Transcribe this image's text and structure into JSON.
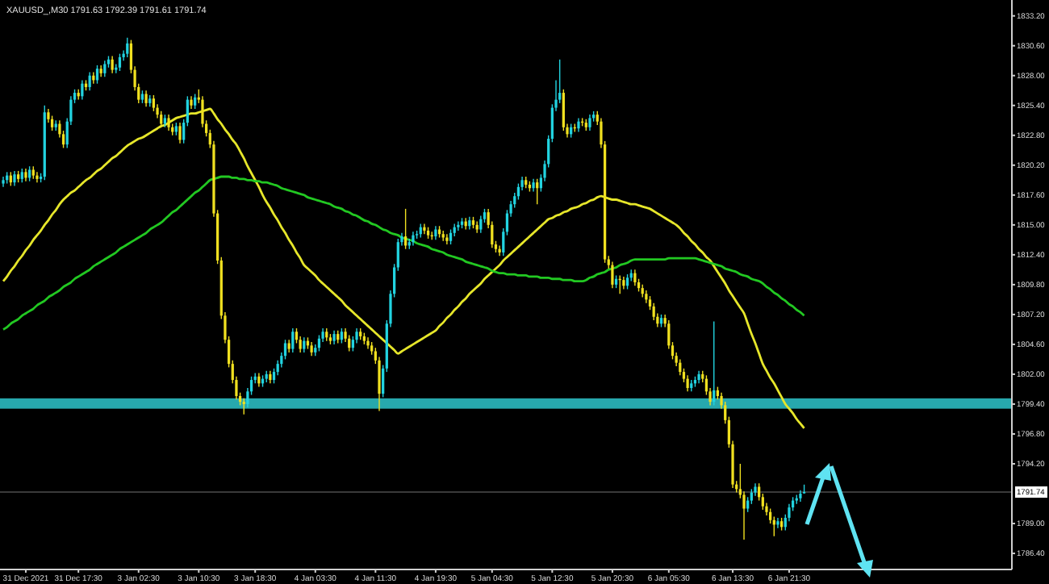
{
  "chart_data": {
    "type": "candlestick",
    "title": "XAUUSD_,M30  1791.63 1792.39 1791.61 1791.74",
    "colors": [
      "#22d3e0",
      "#22d3e0",
      "#f0e020",
      "#22d3e0",
      "#f0e020",
      "#22d3e0",
      "#f0e020",
      "#22d3e0",
      "#f0e020",
      "#f0e020",
      "#22d3e0",
      "#22d3e0",
      "#f0e020",
      "#f0e020",
      "#22d3e0",
      "#f0e020",
      "#f0e020",
      "#22d3e0",
      "#22d3e0",
      "#22d3e0",
      "#f0e020",
      "#22d3e0",
      "#f0e020",
      "#22d3e0",
      "#f0e020",
      "#22d3e0",
      "#f0e020",
      "#22d3e0",
      "#22d3e0",
      "#f0e020",
      "#22d3e0",
      "#22d3e0",
      "#22d3e0",
      "#22d3e0",
      "#f0e020",
      "#f0e020",
      "#f0e020",
      "#22d3e0",
      "#f0e020",
      "#22d3e0",
      "#f0e020",
      "#f0e020",
      "#f0e020",
      "#22d3e0",
      "#f0e020",
      "#f0e020",
      "#22d3e0",
      "#f0e020",
      "#22d3e0",
      "#22d3e0",
      "#f0e020",
      "#22d3e0",
      "#f0e020",
      "#f0e020",
      "#f0e020",
      "#f0e020",
      "#f0e020",
      "#f0e020",
      "#f0e020",
      "#f0e020",
      "#f0e020",
      "#f0e020",
      "#f0e020",
      "#f0e020",
      "#f0e020",
      "#22d3e0",
      "#22d3e0",
      "#22d3e0",
      "#f0e020",
      "#22d3e0",
      "#22d3e0",
      "#f0e020",
      "#22d3e0",
      "#22d3e0",
      "#22d3e0",
      "#22d3e0",
      "#f0e020",
      "#22d3e0",
      "#f0e020",
      "#f0e020",
      "#22d3e0",
      "#f0e020",
      "#f0e020",
      "#22d3e0",
      "#22d3e0",
      "#22d3e0",
      "#f0e020",
      "#f0e020",
      "#22d3e0",
      "#f0e020",
      "#22d3e0",
      "#f0e020",
      "#f0e020",
      "#22d3e0",
      "#22d3e0",
      "#f0e020",
      "#f0e020",
      "#f0e020",
      "#f0e020",
      "#f0e020",
      "#f0e020",
      "#22d3e0",
      "#22d3e0",
      "#22d3e0",
      "#22d3e0",
      "#22d3e0",
      "#22d3e0",
      "#f0e020",
      "#22d3e0",
      "#22d3e0",
      "#22d3e0",
      "#22d3e0",
      "#f0e020",
      "#f0e020",
      "#f0e020",
      "#22d3e0",
      "#f0e020",
      "#f0e020",
      "#f0e020",
      "#22d3e0",
      "#22d3e0",
      "#22d3e0",
      "#22d3e0",
      "#f0e020",
      "#22d3e0",
      "#f0e020",
      "#f0e020",
      "#22d3e0",
      "#22d3e0",
      "#f0e020",
      "#f0e020",
      "#f0e020",
      "#f0e020",
      "#22d3e0",
      "#22d3e0",
      "#22d3e0",
      "#22d3e0",
      "#22d3e0",
      "#22d3e0",
      "#f0e020",
      "#f0e020",
      "#22d3e0",
      "#f0e020",
      "#22d3e0",
      "#22d3e0",
      "#22d3e0",
      "#22d3e0",
      "#22d3e0",
      "#22d3e0",
      "#f0e020",
      "#f0e020",
      "#22d3e0",
      "#f0e020",
      "#22d3e0",
      "#f0e020",
      "#f0e020",
      "#22d3e0",
      "#22d3e0",
      "#f0e020",
      "#f0e020",
      "#f0e020",
      "#f0e020",
      "#f0e020",
      "#22d3e0",
      "#f0e020",
      "#f0e020",
      "#22d3e0",
      "#22d3e0",
      "#f0e020",
      "#f0e020",
      "#f0e020",
      "#f0e020",
      "#f0e020",
      "#f0e020",
      "#f0e020",
      "#22d3e0",
      "#f0e020",
      "#f0e020",
      "#f0e020",
      "#f0e020",
      "#f0e020",
      "#f0e020",
      "#f0e020",
      "#22d3e0",
      "#22d3e0",
      "#22d3e0",
      "#f0e020",
      "#f0e020",
      "#f0e020",
      "#22d3e0",
      "#f0e020",
      "#f0e020",
      "#f0e020",
      "#f0e020",
      "#f0e020",
      "#f0e020",
      "#f0e020",
      "#f0e020",
      "#22d3e0",
      "#22d3e0",
      "#22d3e0",
      "#f0e020",
      "#f0e020",
      "#f0e020",
      "#f0e020",
      "#f0e020",
      "#22d3e0",
      "#f0e020",
      "#22d3e0",
      "#22d3e0",
      "#22d3e0",
      "#22d3e0",
      "#22d3e0",
      "#22d3e0"
    ],
    "categories": [
      null,
      null,
      null,
      null,
      null,
      null,
      "31 Dec 2021",
      null,
      null,
      null,
      null,
      null,
      null,
      null,
      null,
      null,
      null,
      null,
      null,
      null,
      "31 Dec 17:30",
      null,
      null,
      null,
      null,
      null,
      null,
      null,
      null,
      null,
      null,
      null,
      null,
      null,
      null,
      null,
      "3 Jan 02:30",
      null,
      null,
      null,
      null,
      null,
      null,
      null,
      null,
      null,
      null,
      null,
      null,
      null,
      null,
      null,
      "3 Jan 10:30",
      null,
      null,
      null,
      null,
      null,
      null,
      null,
      null,
      null,
      null,
      null,
      null,
      null,
      null,
      "3 Jan 18:30",
      null,
      null,
      null,
      null,
      null,
      null,
      null,
      null,
      null,
      null,
      null,
      null,
      null,
      null,
      null,
      "4 Jan 03:30",
      null,
      null,
      null,
      null,
      null,
      null,
      null,
      null,
      null,
      null,
      null,
      null,
      null,
      null,
      null,
      "4 Jan 11:30",
      null,
      null,
      null,
      null,
      null,
      null,
      null,
      null,
      null,
      null,
      null,
      null,
      null,
      null,
      null,
      "4 Jan 19:30",
      null,
      null,
      null,
      null,
      null,
      null,
      null,
      null,
      null,
      null,
      null,
      null,
      null,
      null,
      "5 Jan 04:30",
      null,
      null,
      null,
      null,
      null,
      null,
      null,
      null,
      null,
      null,
      null,
      null,
      null,
      null,
      null,
      "5 Jan 12:30",
      null,
      null,
      null,
      null,
      null,
      null,
      null,
      null,
      null,
      null,
      null,
      null,
      null,
      null,
      null,
      "5 Jan 20:30",
      null,
      null,
      null,
      null,
      null,
      null,
      null,
      null,
      null,
      null,
      null,
      null,
      null,
      null,
      "6 Jan 05:30",
      null,
      null,
      null,
      null,
      null,
      null,
      null,
      null,
      null,
      null,
      null,
      null,
      null,
      null,
      null,
      null,
      "6 Jan 13:30",
      null,
      null,
      null,
      null,
      null,
      null,
      null,
      null,
      null,
      null,
      null,
      null,
      null,
      null,
      "6 Jan 21:30",
      null,
      null,
      null,
      null
    ],
    "ohlc": [
      [
        1818.6,
        1819.2,
        1818.3,
        1818.9
      ],
      [
        1818.9,
        1819.6,
        1818.6,
        1819.3
      ],
      [
        1819.3,
        1819.6,
        1818.4,
        1818.7
      ],
      [
        1818.7,
        1819.7,
        1818.4,
        1819.4
      ],
      [
        1819.4,
        1819.7,
        1818.7,
        1819.0
      ],
      [
        1819.0,
        1819.9,
        1818.7,
        1819.6
      ],
      [
        1819.6,
        1819.9,
        1818.8,
        1819.1
      ],
      [
        1819.1,
        1820.1,
        1818.8,
        1819.8
      ],
      [
        1819.8,
        1820.1,
        1819.0,
        1819.3
      ],
      [
        1819.3,
        1819.6,
        1818.7,
        1819.0
      ],
      [
        1819.0,
        1819.5,
        1818.7,
        1819.2
      ],
      [
        1819.2,
        1825.4,
        1818.9,
        1824.8
      ],
      [
        1824.8,
        1825.1,
        1823.9,
        1824.2
      ],
      [
        1824.2,
        1824.5,
        1823.2,
        1823.5
      ],
      [
        1823.5,
        1824.1,
        1823.2,
        1823.8
      ],
      [
        1823.8,
        1824.1,
        1822.6,
        1822.9
      ],
      [
        1822.9,
        1823.2,
        1821.7,
        1822.0
      ],
      [
        1822.0,
        1824.3,
        1821.7,
        1824.0
      ],
      [
        1824.0,
        1826.2,
        1823.7,
        1825.9
      ],
      [
        1825.9,
        1826.8,
        1825.6,
        1826.5
      ],
      [
        1826.5,
        1826.8,
        1825.9,
        1826.2
      ],
      [
        1826.2,
        1827.6,
        1825.9,
        1827.3
      ],
      [
        1827.3,
        1827.6,
        1826.7,
        1827.0
      ],
      [
        1827.0,
        1828.3,
        1826.7,
        1828.0
      ],
      [
        1828.0,
        1828.3,
        1827.3,
        1827.6
      ],
      [
        1827.6,
        1828.9,
        1827.3,
        1828.6
      ],
      [
        1828.6,
        1828.9,
        1827.9,
        1828.2
      ],
      [
        1828.2,
        1829.3,
        1827.9,
        1829.0
      ],
      [
        1829.0,
        1829.7,
        1828.7,
        1829.4
      ],
      [
        1829.4,
        1829.7,
        1828.2,
        1828.5
      ],
      [
        1828.5,
        1829.0,
        1828.2,
        1828.7
      ],
      [
        1828.7,
        1829.9,
        1828.4,
        1829.6
      ],
      [
        1829.6,
        1830.2,
        1829.3,
        1829.9
      ],
      [
        1829.9,
        1831.3,
        1829.6,
        1830.8
      ],
      [
        1830.8,
        1831.1,
        1828.2,
        1828.5
      ],
      [
        1828.5,
        1828.8,
        1826.7,
        1827.0
      ],
      [
        1827.0,
        1827.3,
        1825.6,
        1825.9
      ],
      [
        1825.9,
        1826.7,
        1825.6,
        1826.4
      ],
      [
        1826.4,
        1826.7,
        1825.3,
        1825.6
      ],
      [
        1825.6,
        1826.3,
        1825.3,
        1826.0
      ],
      [
        1826.0,
        1826.3,
        1824.9,
        1825.2
      ],
      [
        1825.2,
        1825.5,
        1824.3,
        1824.6
      ],
      [
        1824.6,
        1824.9,
        1823.5,
        1823.8
      ],
      [
        1823.8,
        1824.6,
        1823.5,
        1824.3
      ],
      [
        1824.3,
        1824.6,
        1823.2,
        1823.5
      ],
      [
        1823.5,
        1823.8,
        1822.8,
        1823.1
      ],
      [
        1823.1,
        1823.9,
        1822.8,
        1823.6
      ],
      [
        1823.6,
        1823.9,
        1822.1,
        1822.4
      ],
      [
        1822.4,
        1824.2,
        1822.1,
        1823.9
      ],
      [
        1823.9,
        1826.2,
        1823.6,
        1825.9
      ],
      [
        1825.9,
        1826.2,
        1825.1,
        1825.4
      ],
      [
        1825.4,
        1826.4,
        1825.1,
        1826.1
      ],
      [
        1826.1,
        1826.8,
        1825.6,
        1825.9
      ],
      [
        1825.9,
        1826.2,
        1823.5,
        1823.8
      ],
      [
        1823.8,
        1824.1,
        1822.7,
        1823.0
      ],
      [
        1823.0,
        1823.3,
        1821.7,
        1822.0
      ],
      [
        1822.0,
        1822.3,
        1815.7,
        1816.0
      ],
      [
        1816.0,
        1816.3,
        1811.6,
        1811.9
      ],
      [
        1811.9,
        1812.2,
        1806.8,
        1807.1
      ],
      [
        1807.1,
        1807.4,
        1804.7,
        1805.0
      ],
      [
        1805.0,
        1805.3,
        1802.6,
        1802.9
      ],
      [
        1802.9,
        1803.2,
        1801.2,
        1801.5
      ],
      [
        1801.5,
        1801.8,
        1799.8,
        1800.1
      ],
      [
        1800.1,
        1800.4,
        1799.3,
        1799.6
      ],
      [
        1799.6,
        1799.9,
        1798.5,
        1799.4
      ],
      [
        1799.4,
        1800.8,
        1799.1,
        1800.5
      ],
      [
        1800.5,
        1801.8,
        1800.2,
        1801.5
      ],
      [
        1801.5,
        1802.1,
        1801.2,
        1801.8
      ],
      [
        1801.8,
        1802.1,
        1800.9,
        1801.2
      ],
      [
        1801.2,
        1801.9,
        1800.9,
        1801.6
      ],
      [
        1801.6,
        1802.3,
        1801.3,
        1802.0
      ],
      [
        1802.0,
        1802.3,
        1801.2,
        1801.5
      ],
      [
        1801.5,
        1802.5,
        1801.2,
        1802.2
      ],
      [
        1802.2,
        1803.2,
        1801.9,
        1802.9
      ],
      [
        1802.9,
        1803.9,
        1802.6,
        1803.6
      ],
      [
        1803.6,
        1805.0,
        1803.3,
        1804.7
      ],
      [
        1804.7,
        1805.0,
        1803.9,
        1804.2
      ],
      [
        1804.2,
        1806.0,
        1803.9,
        1805.7
      ],
      [
        1805.7,
        1806.0,
        1804.7,
        1805.0
      ],
      [
        1805.0,
        1805.3,
        1803.9,
        1804.2
      ],
      [
        1804.2,
        1805.2,
        1803.9,
        1804.9
      ],
      [
        1804.9,
        1805.2,
        1804.2,
        1804.5
      ],
      [
        1804.5,
        1804.8,
        1803.6,
        1803.9
      ],
      [
        1803.9,
        1804.6,
        1803.6,
        1804.3
      ],
      [
        1804.3,
        1805.4,
        1804.0,
        1805.1
      ],
      [
        1805.1,
        1806.0,
        1804.8,
        1805.7
      ],
      [
        1805.7,
        1806.0,
        1804.9,
        1805.2
      ],
      [
        1805.2,
        1805.5,
        1804.6,
        1804.9
      ],
      [
        1804.9,
        1805.8,
        1804.6,
        1805.5
      ],
      [
        1805.5,
        1805.8,
        1804.7,
        1805.0
      ],
      [
        1805.0,
        1806.0,
        1804.7,
        1805.7
      ],
      [
        1805.7,
        1806.0,
        1804.8,
        1805.1
      ],
      [
        1805.1,
        1805.4,
        1804.0,
        1804.3
      ],
      [
        1804.3,
        1805.3,
        1804.0,
        1805.0
      ],
      [
        1805.0,
        1806.0,
        1804.7,
        1805.7
      ],
      [
        1805.7,
        1806.0,
        1805.0,
        1805.3
      ],
      [
        1805.3,
        1805.6,
        1804.6,
        1804.9
      ],
      [
        1804.9,
        1805.2,
        1804.2,
        1804.5
      ],
      [
        1804.5,
        1804.8,
        1803.7,
        1804.0
      ],
      [
        1804.0,
        1804.3,
        1802.9,
        1803.2
      ],
      [
        1803.2,
        1803.5,
        1798.8,
        1800.3
      ],
      [
        1800.3,
        1802.8,
        1800.0,
        1802.5
      ],
      [
        1802.5,
        1806.7,
        1802.2,
        1806.4
      ],
      [
        1806.4,
        1809.3,
        1806.1,
        1809.0
      ],
      [
        1809.0,
        1811.6,
        1808.7,
        1811.3
      ],
      [
        1811.3,
        1813.8,
        1811.0,
        1813.5
      ],
      [
        1813.5,
        1814.3,
        1813.2,
        1814.0
      ],
      [
        1814.0,
        1816.4,
        1812.9,
        1813.2
      ],
      [
        1813.2,
        1813.8,
        1812.9,
        1813.5
      ],
      [
        1813.5,
        1814.4,
        1813.2,
        1814.1
      ],
      [
        1814.1,
        1814.5,
        1813.8,
        1814.2
      ],
      [
        1814.2,
        1815.1,
        1813.9,
        1814.8
      ],
      [
        1814.8,
        1815.1,
        1814.2,
        1814.5
      ],
      [
        1814.5,
        1814.8,
        1813.8,
        1814.1
      ],
      [
        1814.1,
        1814.4,
        1813.7,
        1814.0
      ],
      [
        1814.0,
        1814.9,
        1813.7,
        1814.6
      ],
      [
        1814.6,
        1814.9,
        1813.9,
        1814.2
      ],
      [
        1814.2,
        1814.5,
        1813.6,
        1813.9
      ],
      [
        1813.9,
        1814.2,
        1813.3,
        1813.6
      ],
      [
        1813.6,
        1814.6,
        1813.3,
        1814.3
      ],
      [
        1814.3,
        1815.1,
        1814.0,
        1814.8
      ],
      [
        1814.8,
        1815.3,
        1814.5,
        1815.0
      ],
      [
        1815.0,
        1815.6,
        1814.7,
        1815.3
      ],
      [
        1815.3,
        1815.6,
        1814.6,
        1814.9
      ],
      [
        1814.9,
        1815.7,
        1814.6,
        1815.4
      ],
      [
        1815.4,
        1815.7,
        1814.7,
        1815.0
      ],
      [
        1815.0,
        1815.3,
        1814.3,
        1814.6
      ],
      [
        1814.6,
        1815.8,
        1814.3,
        1815.5
      ],
      [
        1815.5,
        1816.4,
        1815.2,
        1816.1
      ],
      [
        1816.1,
        1816.4,
        1814.7,
        1815.0
      ],
      [
        1815.0,
        1815.3,
        1813.0,
        1813.3
      ],
      [
        1813.3,
        1813.6,
        1812.6,
        1812.9
      ],
      [
        1812.9,
        1813.2,
        1812.3,
        1812.6
      ],
      [
        1812.6,
        1814.7,
        1812.3,
        1814.4
      ],
      [
        1814.4,
        1816.3,
        1814.1,
        1816.0
      ],
      [
        1816.0,
        1817.1,
        1815.7,
        1816.8
      ],
      [
        1816.8,
        1817.8,
        1816.5,
        1817.5
      ],
      [
        1817.5,
        1818.6,
        1817.2,
        1818.3
      ],
      [
        1818.3,
        1819.2,
        1818.0,
        1818.9
      ],
      [
        1818.9,
        1819.2,
        1818.2,
        1818.5
      ],
      [
        1818.5,
        1818.8,
        1817.9,
        1818.2
      ],
      [
        1818.2,
        1819.0,
        1817.9,
        1818.7
      ],
      [
        1818.7,
        1819.0,
        1816.8,
        1818.2
      ],
      [
        1818.2,
        1819.4,
        1817.9,
        1819.1
      ],
      [
        1819.1,
        1820.6,
        1818.8,
        1820.3
      ],
      [
        1820.3,
        1822.8,
        1820.0,
        1822.5
      ],
      [
        1822.5,
        1825.5,
        1822.2,
        1825.2
      ],
      [
        1825.2,
        1827.6,
        1824.9,
        1825.9
      ],
      [
        1825.9,
        1829.4,
        1825.6,
        1826.5
      ],
      [
        1826.5,
        1826.8,
        1823.2,
        1823.5
      ],
      [
        1823.5,
        1823.8,
        1822.6,
        1822.9
      ],
      [
        1822.9,
        1823.8,
        1822.6,
        1823.5
      ],
      [
        1823.5,
        1823.8,
        1823.1,
        1823.4
      ],
      [
        1823.4,
        1824.3,
        1823.1,
        1824.0
      ],
      [
        1824.0,
        1824.3,
        1823.6,
        1823.9
      ],
      [
        1823.9,
        1824.2,
        1823.2,
        1823.5
      ],
      [
        1823.5,
        1824.6,
        1823.2,
        1824.3
      ],
      [
        1824.3,
        1824.9,
        1824.0,
        1824.6
      ],
      [
        1824.6,
        1824.9,
        1823.7,
        1824.0
      ],
      [
        1824.0,
        1824.3,
        1821.7,
        1822.0
      ],
      [
        1822.0,
        1822.3,
        1811.7,
        1812.0
      ],
      [
        1812.0,
        1812.3,
        1811.2,
        1811.5
      ],
      [
        1811.5,
        1811.8,
        1809.5,
        1809.8
      ],
      [
        1809.8,
        1810.6,
        1809.5,
        1810.3
      ],
      [
        1810.3,
        1810.6,
        1809.0,
        1810.2
      ],
      [
        1810.2,
        1810.5,
        1809.4,
        1809.7
      ],
      [
        1809.7,
        1810.7,
        1809.4,
        1810.4
      ],
      [
        1810.4,
        1811.1,
        1810.1,
        1810.8
      ],
      [
        1810.8,
        1811.1,
        1809.7,
        1810.0
      ],
      [
        1810.0,
        1810.3,
        1809.2,
        1809.5
      ],
      [
        1809.5,
        1809.8,
        1808.7,
        1809.0
      ],
      [
        1809.0,
        1809.3,
        1808.2,
        1808.5
      ],
      [
        1808.5,
        1808.8,
        1807.6,
        1807.9
      ],
      [
        1807.9,
        1808.2,
        1806.7,
        1807.0
      ],
      [
        1807.0,
        1807.3,
        1806.1,
        1806.4
      ],
      [
        1806.4,
        1807.2,
        1806.1,
        1806.9
      ],
      [
        1806.9,
        1807.2,
        1806.1,
        1806.4
      ],
      [
        1806.4,
        1806.7,
        1804.2,
        1804.5
      ],
      [
        1804.5,
        1804.8,
        1803.3,
        1803.6
      ],
      [
        1803.6,
        1803.9,
        1802.7,
        1803.0
      ],
      [
        1803.0,
        1803.3,
        1801.9,
        1802.2
      ],
      [
        1802.2,
        1802.5,
        1801.3,
        1801.6
      ],
      [
        1801.6,
        1801.9,
        1800.5,
        1800.8
      ],
      [
        1800.8,
        1801.5,
        1800.5,
        1801.2
      ],
      [
        1801.2,
        1801.8,
        1800.9,
        1801.5
      ],
      [
        1801.5,
        1802.3,
        1801.2,
        1802.0
      ],
      [
        1802.0,
        1802.3,
        1801.3,
        1801.6
      ],
      [
        1801.6,
        1801.9,
        1800.2,
        1800.5
      ],
      [
        1800.5,
        1800.8,
        1799.3,
        1799.6
      ],
      [
        1799.6,
        1806.6,
        1799.3,
        1800.6
      ],
      [
        1800.6,
        1800.9,
        1799.8,
        1800.1
      ],
      [
        1800.1,
        1800.4,
        1799.0,
        1799.3
      ],
      [
        1799.3,
        1799.6,
        1797.7,
        1798.0
      ],
      [
        1798.0,
        1798.3,
        1795.6,
        1795.9
      ],
      [
        1795.9,
        1796.2,
        1792.1,
        1792.4
      ],
      [
        1792.4,
        1792.7,
        1791.7,
        1792.0
      ],
      [
        1792.0,
        1794.2,
        1791.2,
        1791.5
      ],
      [
        1791.5,
        1791.8,
        1787.6,
        1790.3
      ],
      [
        1790.3,
        1791.3,
        1790.0,
        1791.0
      ],
      [
        1791.0,
        1792.0,
        1790.7,
        1791.7
      ],
      [
        1791.7,
        1792.5,
        1791.4,
        1792.2
      ],
      [
        1792.2,
        1792.5,
        1791.0,
        1791.3
      ],
      [
        1791.3,
        1791.6,
        1790.2,
        1790.5
      ],
      [
        1790.5,
        1790.8,
        1789.7,
        1790.0
      ],
      [
        1790.0,
        1790.3,
        1789.0,
        1789.3
      ],
      [
        1789.3,
        1789.6,
        1787.9,
        1788.9
      ],
      [
        1788.9,
        1789.5,
        1788.6,
        1789.2
      ],
      [
        1789.2,
        1789.5,
        1788.4,
        1788.7
      ],
      [
        1788.7,
        1789.8,
        1788.4,
        1789.5
      ],
      [
        1789.5,
        1790.7,
        1789.2,
        1790.4
      ],
      [
        1790.4,
        1791.3,
        1790.1,
        1791.0
      ],
      [
        1791.0,
        1791.5,
        1790.7,
        1791.2
      ],
      [
        1791.2,
        1791.9,
        1790.9,
        1791.6
      ],
      [
        1791.63,
        1792.39,
        1791.61,
        1791.74
      ]
    ],
    "series": [
      {
        "type": "line",
        "color": "#e6e62a",
        "values": [
          1810.1,
          1810.5,
          1811.0,
          1811.4,
          1811.9,
          1812.3,
          1812.8,
          1813.2,
          1813.7,
          1814.1,
          1814.5,
          1815.0,
          1815.4,
          1815.9,
          1816.3,
          1816.8,
          1817.2,
          1817.5,
          1817.8,
          1818.0,
          1818.3,
          1818.6,
          1818.9,
          1819.1,
          1819.4,
          1819.7,
          1819.9,
          1820.2,
          1820.5,
          1820.8,
          1821.0,
          1821.3,
          1821.6,
          1821.9,
          1822.1,
          1822.3,
          1822.5,
          1822.6,
          1822.8,
          1823.0,
          1823.2,
          1823.4,
          1823.6,
          1823.7,
          1823.9,
          1824.1,
          1824.3,
          1824.4,
          1824.5,
          1824.6,
          1824.7,
          1824.7,
          1824.8,
          1824.9,
          1825.0,
          1825.1,
          1824.7,
          1824.2,
          1823.8,
          1823.3,
          1822.9,
          1822.4,
          1822.0,
          1821.4,
          1820.8,
          1820.1,
          1819.5,
          1818.9,
          1818.3,
          1817.6,
          1817.0,
          1816.5,
          1815.9,
          1815.4,
          1814.8,
          1814.3,
          1813.7,
          1813.2,
          1812.6,
          1812.1,
          1811.5,
          1811.2,
          1810.9,
          1810.6,
          1810.2,
          1809.9,
          1809.6,
          1809.3,
          1809.0,
          1808.7,
          1808.4,
          1808.0,
          1807.7,
          1807.4,
          1807.1,
          1806.8,
          1806.5,
          1806.2,
          1805.9,
          1805.6,
          1805.3,
          1805.0,
          1804.7,
          1804.4,
          1804.1,
          1803.8,
          1804.0,
          1804.2,
          1804.4,
          1804.6,
          1804.8,
          1805.0,
          1805.2,
          1805.4,
          1805.6,
          1805.8,
          1806.2,
          1806.5,
          1806.9,
          1807.2,
          1807.6,
          1807.9,
          1808.3,
          1808.6,
          1809.0,
          1809.3,
          1809.6,
          1809.9,
          1810.3,
          1810.6,
          1810.9,
          1811.2,
          1811.5,
          1811.9,
          1812.2,
          1812.5,
          1812.8,
          1813.1,
          1813.4,
          1813.7,
          1814.0,
          1814.3,
          1814.6,
          1814.9,
          1815.2,
          1815.5,
          1815.6,
          1815.8,
          1815.9,
          1816.1,
          1816.2,
          1816.4,
          1816.5,
          1816.6,
          1816.8,
          1816.9,
          1817.1,
          1817.2,
          1817.4,
          1817.5,
          1817.4,
          1817.3,
          1817.2,
          1817.2,
          1817.1,
          1817.0,
          1816.9,
          1816.8,
          1816.8,
          1816.7,
          1816.6,
          1816.5,
          1816.4,
          1816.2,
          1816.0,
          1815.8,
          1815.6,
          1815.4,
          1815.2,
          1815.0,
          1814.7,
          1814.3,
          1814.0,
          1813.6,
          1813.3,
          1812.9,
          1812.6,
          1812.2,
          1811.9,
          1811.4,
          1810.9,
          1810.4,
          1809.9,
          1809.3,
          1808.8,
          1808.3,
          1807.8,
          1807.3,
          1806.4,
          1805.5,
          1804.7,
          1803.8,
          1802.9,
          1802.3,
          1801.7,
          1801.2,
          1800.6,
          1800.0,
          1799.4,
          1799.0,
          1798.6,
          1798.1,
          1797.7,
          1797.3
        ]
      },
      {
        "type": "line",
        "color": "#22c822",
        "values": [
          1805.9,
          1806.1,
          1806.4,
          1806.6,
          1806.8,
          1807.1,
          1807.3,
          1807.5,
          1807.7,
          1808.0,
          1808.2,
          1808.4,
          1808.7,
          1808.9,
          1809.1,
          1809.3,
          1809.6,
          1809.8,
          1810.0,
          1810.3,
          1810.5,
          1810.7,
          1810.9,
          1811.1,
          1811.4,
          1811.6,
          1811.8,
          1812.0,
          1812.2,
          1812.4,
          1812.6,
          1812.9,
          1813.1,
          1813.3,
          1813.5,
          1813.7,
          1813.9,
          1814.1,
          1814.3,
          1814.6,
          1814.8,
          1815.0,
          1815.2,
          1815.5,
          1815.8,
          1816.1,
          1816.3,
          1816.6,
          1816.9,
          1817.2,
          1817.5,
          1817.8,
          1818.0,
          1818.3,
          1818.6,
          1818.9,
          1819.0,
          1819.1,
          1819.2,
          1819.2,
          1819.2,
          1819.1,
          1819.1,
          1819.0,
          1819.0,
          1818.9,
          1818.9,
          1818.8,
          1818.8,
          1818.7,
          1818.7,
          1818.6,
          1818.5,
          1818.4,
          1818.2,
          1818.1,
          1818.0,
          1817.9,
          1817.8,
          1817.7,
          1817.6,
          1817.4,
          1817.3,
          1817.2,
          1817.1,
          1817.0,
          1816.9,
          1816.8,
          1816.6,
          1816.5,
          1816.4,
          1816.2,
          1816.1,
          1815.9,
          1815.8,
          1815.6,
          1815.4,
          1815.3,
          1815.1,
          1815.0,
          1814.8,
          1814.6,
          1814.5,
          1814.3,
          1814.2,
          1814.1,
          1813.9,
          1813.8,
          1813.7,
          1813.6,
          1813.4,
          1813.3,
          1813.2,
          1813.1,
          1812.9,
          1812.8,
          1812.7,
          1812.6,
          1812.4,
          1812.3,
          1812.2,
          1812.1,
          1812.0,
          1811.8,
          1811.7,
          1811.6,
          1811.5,
          1811.4,
          1811.3,
          1811.2,
          1811.0,
          1810.9,
          1810.8,
          1810.8,
          1810.7,
          1810.7,
          1810.7,
          1810.6,
          1810.6,
          1810.6,
          1810.5,
          1810.5,
          1810.5,
          1810.4,
          1810.4,
          1810.4,
          1810.3,
          1810.3,
          1810.3,
          1810.2,
          1810.2,
          1810.2,
          1810.1,
          1810.1,
          1810.1,
          1810.2,
          1810.4,
          1810.5,
          1810.7,
          1810.8,
          1810.9,
          1811.1,
          1811.2,
          1811.3,
          1811.5,
          1811.6,
          1811.7,
          1811.9,
          1812.0,
          1812.0,
          1812.0,
          1812.0,
          1812.0,
          1812.0,
          1812.0,
          1812.0,
          1812.0,
          1812.1,
          1812.1,
          1812.1,
          1812.1,
          1812.1,
          1812.1,
          1812.1,
          1812.1,
          1812.0,
          1811.9,
          1811.8,
          1811.7,
          1811.6,
          1811.5,
          1811.4,
          1811.2,
          1811.1,
          1811.0,
          1810.9,
          1810.7,
          1810.6,
          1810.5,
          1810.3,
          1810.2,
          1810.1,
          1809.9,
          1809.6,
          1809.4,
          1809.1,
          1808.9,
          1808.6,
          1808.4,
          1808.1,
          1807.9,
          1807.6,
          1807.4,
          1807.1
        ]
      }
    ],
    "ylim": [
      1785.0,
      1834.3
    ],
    "yticks": [
      {
        "value": 1833.2,
        "label": "1833.20"
      },
      {
        "value": 1830.6,
        "label": "1830.60"
      },
      {
        "value": 1828,
        "label": "1828.00"
      },
      {
        "value": 1825.4,
        "label": "1825.40"
      },
      {
        "value": 1822.8,
        "label": "1822.80"
      },
      {
        "value": 1820.2,
        "label": "1820.20"
      },
      {
        "value": 1817.6,
        "label": "1817.60"
      },
      {
        "value": 1815,
        "label": "1815.00"
      },
      {
        "value": 1812.4,
        "label": "1812.40"
      },
      {
        "value": 1809.8,
        "label": "1809.80"
      },
      {
        "value": 1807.2,
        "label": "1807.20"
      },
      {
        "value": 1804.6,
        "label": "1804.60"
      },
      {
        "value": 1802,
        "label": "1802.00"
      },
      {
        "value": 1799.4,
        "label": "1799.40"
      },
      {
        "value": 1796.8,
        "label": "1796.80"
      },
      {
        "value": 1794.2,
        "label": "1794.20"
      },
      {
        "value": 1789,
        "label": "1789.00"
      },
      {
        "value": 1786.4,
        "label": "1786.40"
      }
    ],
    "bands": [
      {
        "axis": "y",
        "from": 1799.0,
        "to": 1799.9,
        "color": "#27a8ad"
      }
    ],
    "ref_lines": [
      {
        "axis": "y",
        "value": 1791.74,
        "label": "1791.74",
        "color": "#3a3a3a"
      }
    ]
  }
}
